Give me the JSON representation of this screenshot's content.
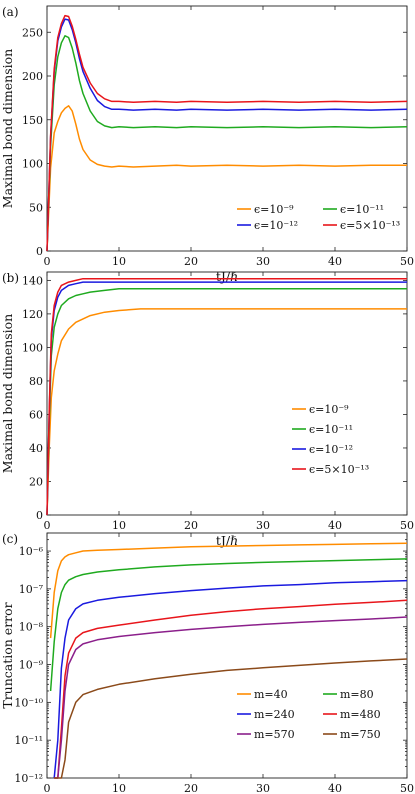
{
  "chart_data": [
    {
      "type": "line",
      "panel_label": "(a)",
      "xlabel": "tJ/ℏ",
      "ylabel": "Maximal bond dimension",
      "xlim": [
        0,
        50
      ],
      "ylim": [
        0,
        280
      ],
      "xticks": [
        0,
        10,
        20,
        30,
        40,
        50
      ],
      "yticks": [
        0,
        50,
        100,
        150,
        200,
        250
      ],
      "legend_layout": "bottom-right, two columns",
      "series": [
        {
          "name": "ϵ=10⁻⁹",
          "color": "#ff8c00",
          "x": [
            0,
            0.5,
            1,
            1.5,
            2,
            2.5,
            3,
            3.5,
            4,
            4.5,
            5,
            6,
            7,
            8,
            9,
            10,
            12,
            15,
            18,
            20,
            25,
            30,
            35,
            40,
            45,
            50
          ],
          "y": [
            0,
            95,
            135,
            148,
            158,
            163,
            166,
            160,
            145,
            128,
            116,
            104,
            99,
            97,
            96,
            97,
            96,
            97,
            98,
            97,
            98,
            97,
            98,
            97,
            98,
            98
          ]
        },
        {
          "name": "ϵ=10⁻¹¹",
          "color": "#1faa1f",
          "x": [
            0,
            0.5,
            1,
            1.5,
            2,
            2.5,
            3,
            3.5,
            4,
            4.5,
            5,
            6,
            7,
            8,
            9,
            10,
            12,
            15,
            18,
            20,
            25,
            30,
            35,
            40,
            45,
            50
          ],
          "y": [
            0,
            120,
            190,
            222,
            238,
            246,
            244,
            232,
            215,
            195,
            180,
            160,
            148,
            143,
            141,
            142,
            141,
            142,
            141,
            142,
            141,
            142,
            141,
            142,
            141,
            142
          ]
        },
        {
          "name": "ϵ=10⁻¹²",
          "color": "#1a1adf",
          "x": [
            0,
            0.5,
            1,
            1.5,
            2,
            2.5,
            3,
            3.5,
            4,
            4.5,
            5,
            6,
            7,
            8,
            9,
            10,
            12,
            15,
            18,
            20,
            25,
            30,
            35,
            40,
            45,
            50
          ],
          "y": [
            0,
            130,
            205,
            240,
            256,
            265,
            264,
            253,
            238,
            220,
            205,
            186,
            172,
            165,
            162,
            162,
            161,
            162,
            161,
            162,
            161,
            162,
            161,
            162,
            161,
            162
          ]
        },
        {
          "name": "ϵ=5×10⁻¹³",
          "color": "#e8151b",
          "x": [
            0,
            0.5,
            1,
            1.5,
            2,
            2.5,
            3,
            3.5,
            4,
            4.5,
            5,
            6,
            7,
            8,
            9,
            10,
            12,
            15,
            18,
            20,
            25,
            30,
            35,
            40,
            45,
            50
          ],
          "y": [
            0,
            132,
            208,
            244,
            260,
            269,
            268,
            257,
            242,
            225,
            210,
            192,
            180,
            174,
            171,
            171,
            170,
            171,
            170,
            171,
            170,
            171,
            170,
            171,
            170,
            171
          ]
        }
      ]
    },
    {
      "type": "line",
      "panel_label": "(b)",
      "xlabel": "tJ/ℏ",
      "ylabel": "Maximal bond dimension",
      "xlim": [
        0,
        50
      ],
      "ylim": [
        0,
        145
      ],
      "xticks": [
        0,
        10,
        20,
        30,
        40,
        50
      ],
      "yticks": [
        0,
        20,
        40,
        60,
        80,
        100,
        120,
        140
      ],
      "legend_layout": "bottom-right, one column",
      "series": [
        {
          "name": "ϵ=10⁻⁹",
          "color": "#ff8c00",
          "x": [
            0,
            0.3,
            0.6,
            1,
            1.5,
            2,
            3,
            4,
            5,
            6,
            8,
            10,
            13,
            16,
            20,
            25,
            30,
            35,
            40,
            45,
            50
          ],
          "y": [
            0,
            40,
            70,
            86,
            96,
            104,
            111,
            115,
            117,
            119,
            121,
            122,
            123,
            123,
            123,
            123,
            123,
            123,
            123,
            123,
            123
          ]
        },
        {
          "name": "ϵ=10⁻¹¹",
          "color": "#1faa1f",
          "x": [
            0,
            0.3,
            0.6,
            1,
            1.5,
            2,
            3,
            4,
            5,
            6,
            8,
            10,
            13,
            16,
            20,
            25,
            30,
            35,
            40,
            45,
            50
          ],
          "y": [
            0,
            55,
            95,
            112,
            120,
            125,
            129,
            131,
            132,
            133,
            134,
            135,
            135,
            135,
            135,
            135,
            135,
            135,
            135,
            135,
            135
          ]
        },
        {
          "name": "ϵ=10⁻¹²",
          "color": "#1a1adf",
          "x": [
            0,
            0.3,
            0.6,
            1,
            1.5,
            2,
            3,
            4,
            5,
            6,
            8,
            10,
            13,
            16,
            20,
            25,
            30,
            35,
            40,
            45,
            50
          ],
          "y": [
            0,
            60,
            105,
            122,
            130,
            134,
            137,
            138,
            139,
            139,
            139,
            139,
            139,
            139,
            139,
            139,
            139,
            139,
            139,
            139,
            139
          ]
        },
        {
          "name": "ϵ=5×10⁻¹³",
          "color": "#e8151b",
          "x": [
            0,
            0.3,
            0.6,
            1,
            1.5,
            2,
            3,
            4,
            5,
            6,
            8,
            10,
            13,
            16,
            20,
            25,
            30,
            35,
            40,
            45,
            50
          ],
          "y": [
            0,
            62,
            108,
            125,
            133,
            137,
            139,
            140,
            141,
            141,
            141,
            141,
            141,
            141,
            141,
            141,
            141,
            141,
            141,
            141,
            141
          ]
        }
      ]
    },
    {
      "type": "line",
      "panel_label": "(c)",
      "xlabel": "tJ/ℏ",
      "ylabel": "Truncation error",
      "xlim": [
        0,
        50
      ],
      "ylim": [
        1e-12,
        3e-06
      ],
      "yscale": "log",
      "xticks": [
        0,
        10,
        20,
        30,
        40,
        50
      ],
      "yticks": [
        1e-12,
        1e-11,
        1e-10,
        1e-09,
        1e-08,
        1e-07,
        1e-06
      ],
      "ytick_labels": [
        "10⁻¹²",
        "10⁻¹¹",
        "10⁻¹⁰",
        "10⁻⁹",
        "10⁻⁸",
        "10⁻⁷",
        "10⁻⁶"
      ],
      "legend_layout": "bottom-right, two columns",
      "series": [
        {
          "name": "m=40",
          "color": "#ff8c00",
          "x": [
            0.5,
            1,
            1.5,
            2,
            2.5,
            3,
            4,
            5,
            7,
            10,
            15,
            20,
            25,
            30,
            35,
            40,
            45,
            50
          ],
          "y": [
            5e-09,
            8e-08,
            3e-07,
            5.5e-07,
            7e-07,
            8e-07,
            9e-07,
            1e-06,
            1.05e-06,
            1.1e-06,
            1.2e-06,
            1.3e-06,
            1.35e-06,
            1.4e-06,
            1.45e-06,
            1.5e-06,
            1.55e-06,
            1.6e-06
          ]
        },
        {
          "name": "m=80",
          "color": "#1faa1f",
          "x": [
            0.5,
            1,
            1.5,
            2,
            2.5,
            3,
            4,
            5,
            7,
            10,
            15,
            20,
            25,
            30,
            35,
            40,
            45,
            50
          ],
          "y": [
            2e-10,
            4e-09,
            3e-08,
            8e-08,
            1.3e-07,
            1.7e-07,
            2.1e-07,
            2.4e-07,
            2.8e-07,
            3.2e-07,
            3.8e-07,
            4.3e-07,
            4.7e-07,
            5e-07,
            5.3e-07,
            5.6e-07,
            5.9e-07,
            6.2e-07
          ]
        },
        {
          "name": "m=240",
          "color": "#1a1adf",
          "x": [
            1,
            1.5,
            2,
            2.5,
            3,
            4,
            5,
            7,
            10,
            15,
            20,
            25,
            30,
            35,
            40,
            45,
            50
          ],
          "y": [
            1e-12,
            1e-11,
            8e-10,
            5e-09,
            1.5e-08,
            3e-08,
            4e-08,
            5e-08,
            6e-08,
            7.5e-08,
            9e-08,
            1.05e-07,
            1.2e-07,
            1.3e-07,
            1.45e-07,
            1.55e-07,
            1.65e-07
          ]
        },
        {
          "name": "m=480",
          "color": "#e8151b",
          "x": [
            1,
            1.5,
            2,
            2.5,
            3,
            4,
            5,
            7,
            10,
            15,
            20,
            25,
            30,
            35,
            40,
            45,
            50
          ],
          "y": [
            1e-12,
            1e-12,
            2e-11,
            5e-10,
            2e-09,
            5e-09,
            7e-09,
            9e-09,
            1.1e-08,
            1.5e-08,
            2e-08,
            2.5e-08,
            3e-08,
            3.4e-08,
            3.9e-08,
            4.4e-08,
            5e-08
          ]
        },
        {
          "name": "m=570",
          "color": "#8b1f8b",
          "x": [
            1,
            1.5,
            2,
            2.5,
            3,
            4,
            5,
            7,
            10,
            15,
            20,
            25,
            30,
            35,
            40,
            45,
            50
          ],
          "y": [
            1e-12,
            1e-12,
            1e-11,
            2e-10,
            1e-09,
            2.5e-09,
            3.5e-09,
            4.5e-09,
            5.5e-09,
            7e-09,
            8.5e-09,
            1e-08,
            1.15e-08,
            1.3e-08,
            1.45e-08,
            1.6e-08,
            1.8e-08
          ]
        },
        {
          "name": "m=750",
          "color": "#8b4a1a",
          "x": [
            1,
            1.5,
            2,
            2.5,
            3,
            4,
            5,
            7,
            10,
            15,
            20,
            25,
            30,
            35,
            40,
            45,
            50
          ],
          "y": [
            1e-12,
            1e-12,
            1e-12,
            3e-12,
            3e-11,
            1e-10,
            1.6e-10,
            2.2e-10,
            3e-10,
            4.2e-10,
            5.5e-10,
            7e-10,
            8.2e-10,
            9.5e-10,
            1.1e-09,
            1.25e-09,
            1.4e-09
          ]
        }
      ]
    }
  ]
}
